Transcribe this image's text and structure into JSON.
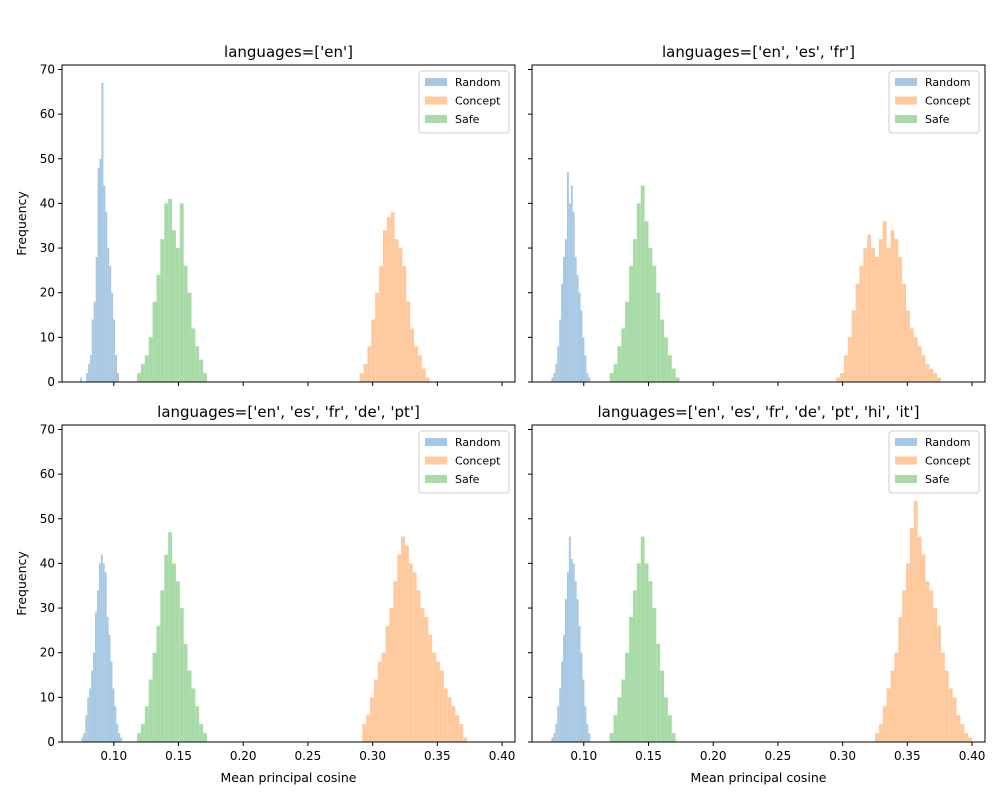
{
  "chart_data": {
    "type": "histogram",
    "layout": "2x2 grid, shared x and y axes",
    "xlabel": "Mean principal cosine",
    "ylabel": "Frequency",
    "xlim": [
      0.06,
      0.41
    ],
    "ylim": [
      0,
      71
    ],
    "xticks": [
      0.1,
      0.15,
      0.2,
      0.25,
      0.3,
      0.35,
      0.4
    ],
    "xtick_labels": [
      "0.10",
      "0.15",
      "0.20",
      "0.25",
      "0.30",
      "0.35",
      "0.40"
    ],
    "yticks": [
      0,
      10,
      20,
      30,
      40,
      50,
      60,
      70
    ],
    "ytick_labels": [
      "0",
      "10",
      "20",
      "30",
      "40",
      "50",
      "60",
      "70"
    ],
    "legend_position": "upper right",
    "series_styles": [
      {
        "name": "Random",
        "color": "#a6c8e2"
      },
      {
        "name": "Concept",
        "color": "#ffc99e"
      },
      {
        "name": "Safe",
        "color": "#a9dba9"
      }
    ],
    "panels": [
      {
        "title": "languages=['en']",
        "series": [
          {
            "name": "Random",
            "bins": [
              0.074,
              0.0755,
              0.077,
              0.0785,
              0.08,
              0.0815,
              0.083,
              0.0845,
              0.086,
              0.0875,
              0.089,
              0.0905,
              0.092,
              0.0935,
              0.095,
              0.0965,
              0.098,
              0.0995,
              0.101,
              0.1025,
              0.104
            ],
            "counts": [
              1,
              0,
              0,
              2,
              4,
              6,
              14,
              18,
              28,
              48,
              50,
              67,
              44,
              38,
              30,
              26,
              20,
              14,
              6,
              2
            ]
          },
          {
            "name": "Safe",
            "bins": [
              0.118,
              0.121,
              0.124,
              0.127,
              0.13,
              0.133,
              0.136,
              0.139,
              0.142,
              0.145,
              0.148,
              0.151,
              0.154,
              0.157,
              0.16,
              0.163,
              0.166,
              0.169,
              0.172
            ],
            "counts": [
              2,
              4,
              6,
              10,
              18,
              24,
              32,
              40,
              41,
              34,
              30,
              40,
              26,
              20,
              12,
              8,
              5,
              2
            ]
          },
          {
            "name": "Concept",
            "bins": [
              0.29,
              0.293,
              0.296,
              0.299,
              0.302,
              0.305,
              0.308,
              0.311,
              0.314,
              0.317,
              0.32,
              0.323,
              0.326,
              0.329,
              0.332,
              0.335,
              0.338,
              0.341,
              0.344
            ],
            "counts": [
              2,
              4,
              8,
              14,
              20,
              26,
              34,
              37,
              38,
              32,
              30,
              26,
              18,
              12,
              8,
              6,
              3,
              1
            ]
          }
        ]
      },
      {
        "title": "languages=['en', 'es', 'fr']",
        "series": [
          {
            "name": "Random",
            "bins": [
              0.075,
              0.0765,
              0.078,
              0.0795,
              0.081,
              0.0825,
              0.084,
              0.0855,
              0.087,
              0.0885,
              0.09,
              0.0915,
              0.093,
              0.0945,
              0.096,
              0.0975,
              0.099,
              0.1005,
              0.102,
              0.1035,
              0.105
            ],
            "counts": [
              1,
              2,
              4,
              8,
              14,
              22,
              28,
              32,
              47,
              40,
              44,
              38,
              28,
              24,
              20,
              16,
              10,
              6,
              2,
              1
            ]
          },
          {
            "name": "Safe",
            "bins": [
              0.12,
              0.123,
              0.126,
              0.129,
              0.132,
              0.135,
              0.138,
              0.141,
              0.144,
              0.147,
              0.15,
              0.153,
              0.156,
              0.159,
              0.162,
              0.165,
              0.168,
              0.171,
              0.174
            ],
            "counts": [
              2,
              4,
              8,
              12,
              18,
              26,
              32,
              40,
              44,
              36,
              30,
              26,
              20,
              14,
              10,
              6,
              3,
              1
            ]
          },
          {
            "name": "Concept",
            "bins": [
              0.295,
              0.298,
              0.301,
              0.304,
              0.307,
              0.31,
              0.313,
              0.316,
              0.319,
              0.322,
              0.325,
              0.328,
              0.331,
              0.334,
              0.337,
              0.34,
              0.343,
              0.346,
              0.349,
              0.352,
              0.355,
              0.358,
              0.361,
              0.364,
              0.367,
              0.37,
              0.373,
              0.376
            ],
            "counts": [
              1,
              2,
              6,
              10,
              16,
              22,
              26,
              30,
              33,
              30,
              28,
              32,
              36,
              30,
              34,
              32,
              28,
              22,
              16,
              12,
              10,
              8,
              6,
              4,
              3,
              2,
              1
            ]
          }
        ]
      },
      {
        "title": "languages=['en', 'es', 'fr', 'de', 'pt']",
        "series": [
          {
            "name": "Random",
            "bins": [
              0.075,
              0.0765,
              0.078,
              0.0795,
              0.081,
              0.0825,
              0.084,
              0.0855,
              0.087,
              0.0885,
              0.09,
              0.0915,
              0.093,
              0.0945,
              0.096,
              0.0975,
              0.099,
              0.1005,
              0.102,
              0.1035,
              0.105,
              0.1065
            ],
            "counts": [
              1,
              2,
              6,
              10,
              12,
              16,
              20,
              29,
              34,
              40,
              42,
              40,
              38,
              28,
              24,
              18,
              12,
              8,
              4,
              2,
              1
            ]
          },
          {
            "name": "Safe",
            "bins": [
              0.118,
              0.121,
              0.124,
              0.127,
              0.13,
              0.133,
              0.136,
              0.139,
              0.142,
              0.145,
              0.148,
              0.151,
              0.154,
              0.157,
              0.16,
              0.163,
              0.166,
              0.169,
              0.172
            ],
            "counts": [
              2,
              4,
              8,
              14,
              20,
              26,
              34,
              42,
              47,
              40,
              36,
              30,
              22,
              16,
              12,
              8,
              4,
              2
            ]
          },
          {
            "name": "Concept",
            "bins": [
              0.292,
              0.295,
              0.298,
              0.301,
              0.304,
              0.307,
              0.31,
              0.313,
              0.316,
              0.319,
              0.322,
              0.325,
              0.328,
              0.331,
              0.334,
              0.337,
              0.34,
              0.343,
              0.346,
              0.349,
              0.352,
              0.355,
              0.358,
              0.361,
              0.364,
              0.367,
              0.37,
              0.373
            ],
            "counts": [
              4,
              6,
              10,
              14,
              18,
              20,
              26,
              30,
              36,
              42,
              46,
              44,
              40,
              38,
              34,
              30,
              28,
              24,
              20,
              18,
              16,
              12,
              10,
              8,
              6,
              4,
              1
            ]
          }
        ]
      },
      {
        "title": "languages=['en', 'es', 'fr', 'de', 'pt', 'hi', 'it']",
        "series": [
          {
            "name": "Random",
            "bins": [
              0.075,
              0.0765,
              0.078,
              0.0795,
              0.081,
              0.0825,
              0.084,
              0.0855,
              0.087,
              0.0885,
              0.09,
              0.0915,
              0.093,
              0.0945,
              0.096,
              0.0975,
              0.099,
              0.1005,
              0.102,
              0.1035,
              0.105
            ],
            "counts": [
              1,
              2,
              4,
              8,
              12,
              18,
              24,
              32,
              38,
              46,
              41,
              40,
              36,
              32,
              26,
              20,
              14,
              8,
              4,
              2
            ]
          },
          {
            "name": "Safe",
            "bins": [
              0.12,
              0.123,
              0.126,
              0.129,
              0.132,
              0.135,
              0.138,
              0.141,
              0.144,
              0.147,
              0.15,
              0.153,
              0.156,
              0.159,
              0.162,
              0.165,
              0.168,
              0.171
            ],
            "counts": [
              2,
              6,
              10,
              14,
              20,
              28,
              34,
              40,
              46,
              40,
              36,
              30,
              22,
              16,
              10,
              6,
              2
            ]
          },
          {
            "name": "Concept",
            "bins": [
              0.325,
              0.328,
              0.331,
              0.334,
              0.337,
              0.34,
              0.343,
              0.346,
              0.349,
              0.352,
              0.355,
              0.358,
              0.361,
              0.364,
              0.367,
              0.37,
              0.373,
              0.376,
              0.379,
              0.382,
              0.385,
              0.388,
              0.391,
              0.394,
              0.397,
              0.4
            ],
            "counts": [
              2,
              4,
              8,
              12,
              16,
              20,
              28,
              34,
              40,
              48,
              54,
              46,
              42,
              36,
              34,
              30,
              26,
              20,
              16,
              12,
              10,
              6,
              4,
              2,
              1
            ]
          }
        ]
      }
    ]
  }
}
